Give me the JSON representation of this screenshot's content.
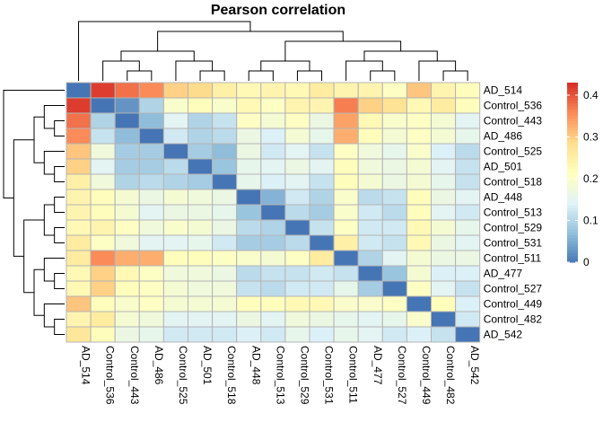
{
  "chart_data": {
    "type": "heatmap",
    "title": "Pearson correlation",
    "labels": [
      "AD_514",
      "Control_536",
      "Control_443",
      "AD_486",
      "Control_525",
      "AD_501",
      "Control_518",
      "AD_448",
      "Control_513",
      "Control_529",
      "Control_531",
      "Control_511",
      "AD_477",
      "Control_527",
      "Control_449",
      "Control_482",
      "AD_542"
    ],
    "matrix": [
      [
        0.0,
        0.42,
        0.38,
        0.36,
        0.3,
        0.29,
        0.25,
        0.23,
        0.24,
        0.23,
        0.26,
        0.24,
        0.24,
        0.21,
        0.31,
        0.24,
        0.22
      ],
      [
        0.42,
        0.0,
        0.03,
        0.1,
        0.2,
        0.22,
        0.2,
        0.23,
        0.21,
        0.24,
        0.24,
        0.37,
        0.3,
        0.28,
        0.23,
        0.26,
        0.22
      ],
      [
        0.38,
        0.1,
        0.0,
        0.07,
        0.15,
        0.1,
        0.12,
        0.21,
        0.19,
        0.21,
        0.17,
        0.34,
        0.23,
        0.2,
        0.21,
        0.19,
        0.15
      ],
      [
        0.36,
        0.12,
        0.07,
        0.0,
        0.13,
        0.1,
        0.11,
        0.17,
        0.14,
        0.19,
        0.16,
        0.33,
        0.22,
        0.19,
        0.21,
        0.19,
        0.16
      ],
      [
        0.31,
        0.18,
        0.09,
        0.09,
        0.0,
        0.09,
        0.07,
        0.17,
        0.13,
        0.15,
        0.12,
        0.21,
        0.18,
        0.16,
        0.2,
        0.14,
        0.11
      ],
      [
        0.3,
        0.15,
        0.09,
        0.09,
        0.11,
        0.0,
        0.08,
        0.16,
        0.15,
        0.17,
        0.15,
        0.22,
        0.18,
        0.17,
        0.19,
        0.15,
        0.12
      ],
      [
        0.25,
        0.18,
        0.1,
        0.11,
        0.1,
        0.09,
        0.0,
        0.16,
        0.14,
        0.15,
        0.12,
        0.22,
        0.19,
        0.17,
        0.19,
        0.16,
        0.12
      ],
      [
        0.24,
        0.22,
        0.19,
        0.17,
        0.19,
        0.18,
        0.17,
        0.0,
        0.06,
        0.13,
        0.1,
        0.2,
        0.11,
        0.12,
        0.22,
        0.17,
        0.15
      ],
      [
        0.24,
        0.22,
        0.19,
        0.15,
        0.17,
        0.17,
        0.16,
        0.08,
        0.0,
        0.11,
        0.09,
        0.2,
        0.13,
        0.11,
        0.22,
        0.15,
        0.13
      ],
      [
        0.23,
        0.24,
        0.21,
        0.18,
        0.2,
        0.19,
        0.17,
        0.11,
        0.1,
        0.0,
        0.12,
        0.21,
        0.13,
        0.13,
        0.23,
        0.19,
        0.16
      ],
      [
        0.26,
        0.21,
        0.18,
        0.15,
        0.15,
        0.16,
        0.13,
        0.09,
        0.09,
        0.11,
        0.0,
        0.25,
        0.13,
        0.12,
        0.23,
        0.17,
        0.15
      ],
      [
        0.26,
        0.36,
        0.33,
        0.33,
        0.22,
        0.22,
        0.21,
        0.2,
        0.19,
        0.21,
        0.26,
        0.0,
        0.1,
        0.15,
        0.19,
        0.17,
        0.17
      ],
      [
        0.23,
        0.3,
        0.23,
        0.21,
        0.18,
        0.18,
        0.17,
        0.11,
        0.12,
        0.12,
        0.13,
        0.12,
        0.0,
        0.08,
        0.19,
        0.14,
        0.14
      ],
      [
        0.23,
        0.3,
        0.22,
        0.21,
        0.19,
        0.18,
        0.18,
        0.12,
        0.11,
        0.13,
        0.13,
        0.16,
        0.09,
        0.0,
        0.21,
        0.15,
        0.12
      ],
      [
        0.31,
        0.22,
        0.2,
        0.21,
        0.19,
        0.19,
        0.19,
        0.22,
        0.22,
        0.23,
        0.23,
        0.2,
        0.2,
        0.21,
        0.0,
        0.22,
        0.14
      ],
      [
        0.24,
        0.26,
        0.19,
        0.18,
        0.15,
        0.15,
        0.15,
        0.17,
        0.15,
        0.18,
        0.17,
        0.16,
        0.15,
        0.16,
        0.2,
        0.0,
        0.13
      ],
      [
        0.27,
        0.22,
        0.17,
        0.16,
        0.13,
        0.13,
        0.13,
        0.14,
        0.13,
        0.16,
        0.14,
        0.16,
        0.15,
        0.13,
        0.14,
        0.12,
        0.0
      ]
    ],
    "color_scale": {
      "min": 0,
      "max": 0.43,
      "colors": [
        "#4575b4",
        "#91bfdb",
        "#e0f3f8",
        "#ffffbf",
        "#fee090",
        "#fc8d59",
        "#d73027"
      ]
    },
    "legend": {
      "position": "right",
      "ticks": [
        "0",
        "0.1",
        "0.2",
        "0.3",
        "0.4"
      ],
      "tick_values": [
        0,
        0.1,
        0.2,
        0.3,
        0.4
      ]
    },
    "grid": true,
    "dendrograms": [
      "rows",
      "columns"
    ]
  }
}
